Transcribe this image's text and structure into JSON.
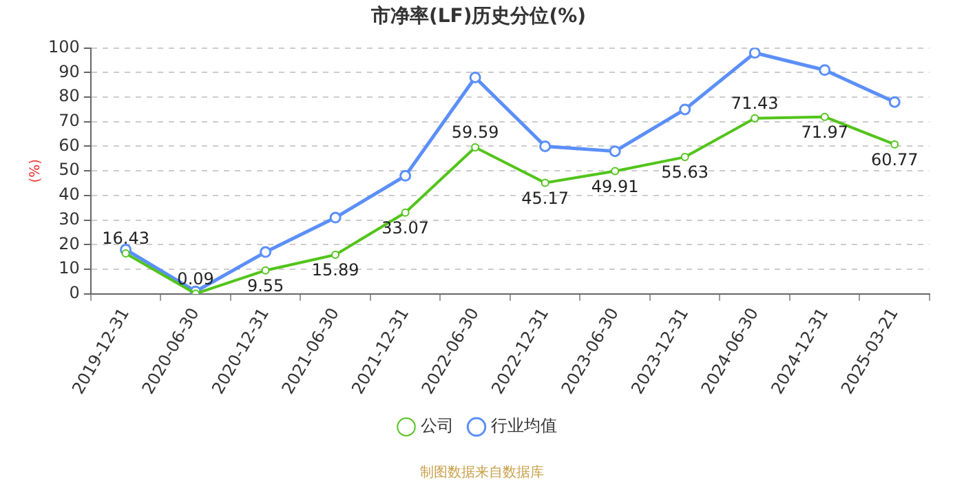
{
  "chart_data": {
    "type": "line",
    "title": "市净率(LF)历史分位(%)",
    "ylabel": "(%)",
    "categories": [
      "2019-12-31",
      "2020-06-30",
      "2020-12-31",
      "2021-06-30",
      "2021-12-31",
      "2022-06-30",
      "2022-12-31",
      "2023-06-30",
      "2023-12-31",
      "2024-06-30",
      "2024-12-31",
      "2025-03-21"
    ],
    "series": [
      {
        "name": "公司",
        "color": "#52c41a",
        "values": [
          16.43,
          0.09,
          9.55,
          15.89,
          33.07,
          59.59,
          45.17,
          49.91,
          55.63,
          71.43,
          71.97,
          60.77
        ],
        "value_labels": [
          "16.43",
          "0.09",
          "9.55",
          "15.89",
          "33.07",
          "59.59",
          "45.17",
          "49.91",
          "55.63",
          "71.43",
          "71.97",
          "60.77"
        ]
      },
      {
        "name": "行业均值",
        "color": "#5b8ff9",
        "values": [
          18,
          1,
          17,
          31,
          48,
          88,
          60,
          58,
          75,
          98,
          91,
          78
        ]
      }
    ],
    "ylim": [
      0,
      100
    ],
    "yticks": [
      0,
      10,
      20,
      30,
      40,
      50,
      60,
      70,
      80,
      90,
      100
    ],
    "grid": "y",
    "legend": "bottom",
    "marker": "circle",
    "line_style": "solid",
    "annotations": [
      "制图数据来自数据库"
    ]
  }
}
